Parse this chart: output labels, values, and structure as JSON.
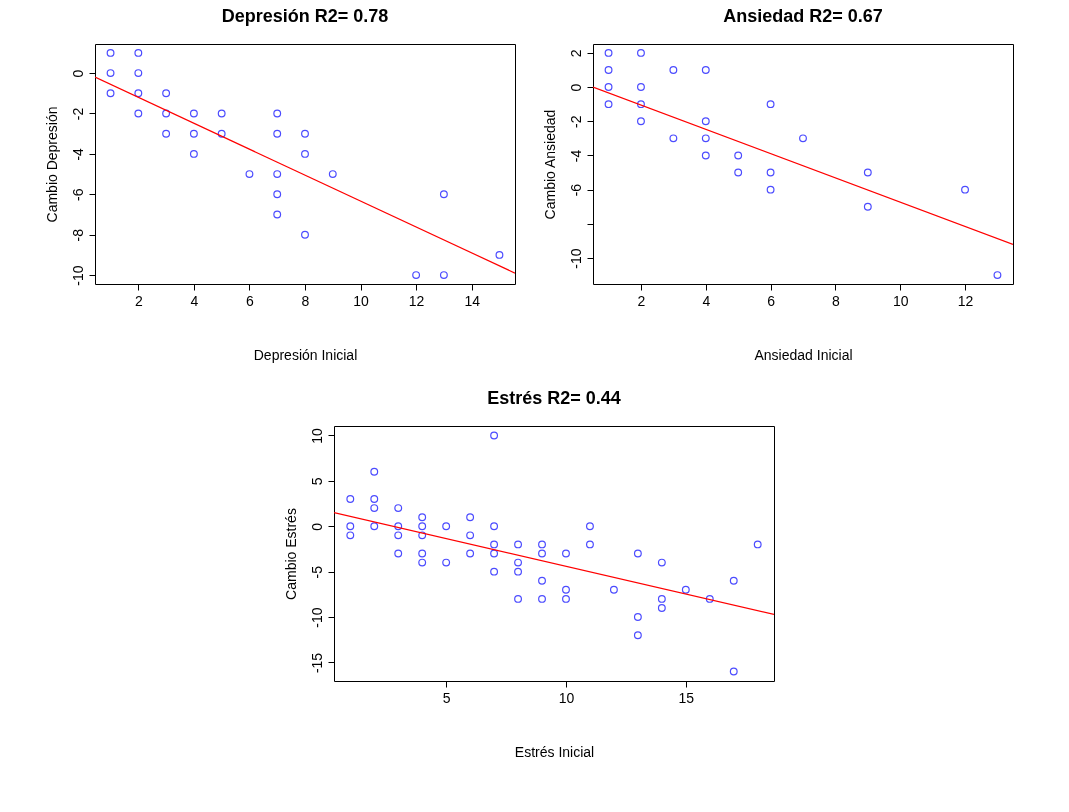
{
  "chart_data": [
    {
      "type": "scatter",
      "title": "Depresión  R2= 0.78",
      "xlabel": "Depresión Inicial",
      "ylabel": "Cambio Depresión",
      "xlim": [
        0.44,
        15.56
      ],
      "ylim": [
        -10.44,
        1.44
      ],
      "xticks": [
        2,
        4,
        6,
        8,
        10,
        12,
        14
      ],
      "yticks": [
        -10,
        -8,
        -6,
        -4,
        -2,
        0
      ],
      "grid": false,
      "marker": "circle",
      "series": [
        {
          "type": "scatter",
          "color": "#0000ff",
          "x": [
            1,
            1,
            1,
            2,
            2,
            2,
            2,
            3,
            3,
            3,
            4,
            4,
            4,
            5,
            5,
            6,
            7,
            7,
            7,
            7,
            7,
            8,
            8,
            8,
            9,
            12,
            13,
            13,
            15
          ],
          "values": [
            1,
            0,
            -1,
            1,
            0,
            -1,
            -2,
            -1,
            -2,
            -3,
            -2,
            -3,
            -4,
            -2,
            -3,
            -5,
            -2,
            -3,
            -5,
            -6,
            -7,
            -3,
            -4,
            -8,
            -5,
            -10,
            -6,
            -10,
            -9
          ]
        },
        {
          "type": "line",
          "marker": "none",
          "color": "#ff0000",
          "x": [
            0.44,
            15.56
          ],
          "values": [
            -0.2,
            -9.9
          ]
        }
      ]
    },
    {
      "type": "scatter",
      "title": "Ansiedad  R2= 0.67",
      "xlabel": "Ansiedad Inicial",
      "ylabel": "Cambio Ansiedad",
      "xlim": [
        0.52,
        13.48
      ],
      "ylim": [
        -11.52,
        2.52
      ],
      "xticks": [
        2,
        4,
        6,
        8,
        10,
        12
      ],
      "yticks": [
        -10,
        {
          "value": -8,
          "label": null
        },
        -6,
        -4,
        -2,
        0,
        2
      ],
      "grid": false,
      "marker": "circle",
      "series": [
        {
          "type": "scatter",
          "color": "#0000ff",
          "x": [
            1,
            1,
            1,
            1,
            2,
            2,
            2,
            2,
            3,
            3,
            4,
            4,
            4,
            4,
            5,
            5,
            6,
            6,
            6,
            7,
            9,
            9,
            12,
            13
          ],
          "values": [
            2,
            1,
            0,
            -1,
            2,
            0,
            -1,
            -2,
            1,
            -3,
            1,
            -2,
            -3,
            -4,
            -4,
            -5,
            -1,
            -5,
            -6,
            -3,
            -5,
            -7,
            -6,
            -11
          ]
        },
        {
          "type": "line",
          "marker": "none",
          "color": "#ff0000",
          "x": [
            0.52,
            13.48
          ],
          "values": [
            0,
            -9.2
          ]
        }
      ]
    },
    {
      "type": "scatter",
      "title": "Estrés  R2= 0.44",
      "xlabel": "Estrés Inicial",
      "ylabel": "Cambio Estrés",
      "xlim": [
        0.32,
        18.68
      ],
      "ylim": [
        -17.04,
        11.04
      ],
      "xticks": [
        5,
        10,
        15
      ],
      "yticks": [
        -15,
        -10,
        -5,
        0,
        5,
        10
      ],
      "grid": false,
      "marker": "circle",
      "series": [
        {
          "type": "scatter",
          "color": "#0000ff",
          "x": [
            1,
            1,
            1,
            2,
            2,
            2,
            2,
            3,
            3,
            3,
            3,
            4,
            4,
            4,
            4,
            4,
            5,
            5,
            6,
            6,
            6,
            7,
            7,
            7,
            7,
            7,
            8,
            8,
            8,
            8,
            9,
            9,
            9,
            9,
            10,
            10,
            10,
            11,
            11,
            12,
            13,
            13,
            13,
            14,
            14,
            14,
            15,
            16,
            17,
            17,
            18
          ],
          "values": [
            3,
            0,
            -1,
            6,
            3,
            2,
            0,
            2,
            0,
            -1,
            -3,
            1,
            0,
            -1,
            -3,
            -4,
            0,
            -4,
            1,
            -1,
            -3,
            10,
            0,
            -2,
            -3,
            -5,
            -2,
            -4,
            -5,
            -8,
            -2,
            -3,
            -6,
            -8,
            -3,
            -7,
            -8,
            0,
            -2,
            -7,
            -3,
            -10,
            -12,
            -4,
            -8,
            -9,
            -7,
            -8,
            -6,
            -16,
            -2
          ]
        },
        {
          "type": "line",
          "marker": "none",
          "color": "#ff0000",
          "x": [
            0.32,
            18.68
          ],
          "values": [
            1.5,
            -9.7
          ]
        }
      ]
    }
  ]
}
